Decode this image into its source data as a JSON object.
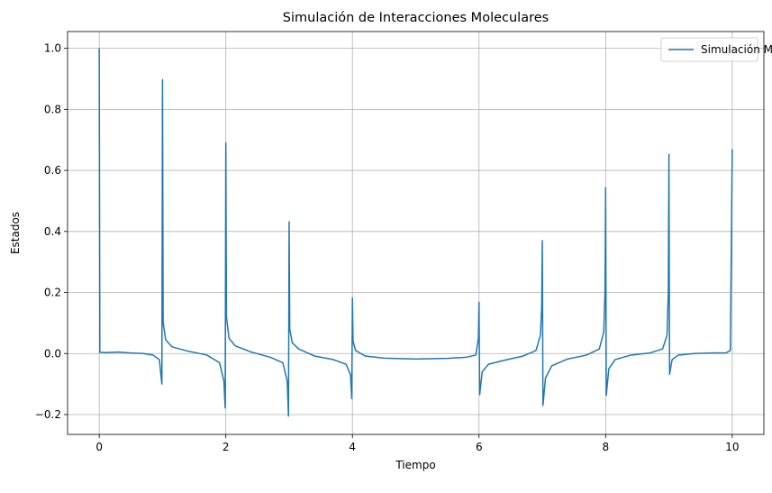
{
  "chart_data": {
    "type": "line",
    "title": "Simulación de Interacciones Moleculares",
    "xlabel": "Tiempo",
    "ylabel": "Estados",
    "xlim": [
      -0.5,
      10.5
    ],
    "ylim": [
      -0.265,
      1.055
    ],
    "xticks": [
      0,
      2,
      4,
      6,
      8,
      10
    ],
    "yticks": [
      -0.2,
      0.0,
      0.2,
      0.4,
      0.6,
      0.8,
      1.0
    ],
    "grid": true,
    "legend": {
      "placement": "top-right",
      "entries": [
        "Simulación Molecular"
      ]
    },
    "series": [
      {
        "name": "Simulación Molecular",
        "color": "#1f77b4",
        "points": [
          [
            0.0,
            1.0
          ],
          [
            0.01,
            0.004
          ],
          [
            0.1,
            0.003
          ],
          [
            0.3,
            0.005
          ],
          [
            0.5,
            0.002
          ],
          [
            0.7,
            0.0
          ],
          [
            0.85,
            -0.005
          ],
          [
            0.95,
            -0.02
          ],
          [
            0.99,
            -0.1
          ],
          [
            1.0,
            0.897
          ],
          [
            1.01,
            0.1
          ],
          [
            1.05,
            0.045
          ],
          [
            1.15,
            0.022
          ],
          [
            1.4,
            0.008
          ],
          [
            1.7,
            -0.005
          ],
          [
            1.9,
            -0.03
          ],
          [
            1.97,
            -0.09
          ],
          [
            1.99,
            -0.178
          ],
          [
            2.0,
            0.69
          ],
          [
            2.01,
            0.12
          ],
          [
            2.05,
            0.05
          ],
          [
            2.15,
            0.025
          ],
          [
            2.4,
            0.005
          ],
          [
            2.7,
            -0.012
          ],
          [
            2.9,
            -0.03
          ],
          [
            2.97,
            -0.09
          ],
          [
            2.99,
            -0.205
          ],
          [
            3.0,
            0.432
          ],
          [
            3.01,
            0.08
          ],
          [
            3.05,
            0.035
          ],
          [
            3.15,
            0.015
          ],
          [
            3.4,
            -0.008
          ],
          [
            3.7,
            -0.02
          ],
          [
            3.9,
            -0.035
          ],
          [
            3.97,
            -0.07
          ],
          [
            3.99,
            -0.148
          ],
          [
            4.0,
            0.182
          ],
          [
            4.01,
            0.04
          ],
          [
            4.05,
            0.01
          ],
          [
            4.2,
            -0.008
          ],
          [
            4.5,
            -0.015
          ],
          [
            5.0,
            -0.018
          ],
          [
            5.5,
            -0.016
          ],
          [
            5.8,
            -0.012
          ],
          [
            5.95,
            -0.005
          ],
          [
            5.99,
            0.05
          ],
          [
            6.0,
            0.168
          ],
          [
            6.01,
            -0.135
          ],
          [
            6.05,
            -0.06
          ],
          [
            6.15,
            -0.035
          ],
          [
            6.4,
            -0.022
          ],
          [
            6.7,
            -0.008
          ],
          [
            6.9,
            0.01
          ],
          [
            6.97,
            0.06
          ],
          [
            6.99,
            0.15
          ],
          [
            7.0,
            0.37
          ],
          [
            7.01,
            -0.17
          ],
          [
            7.05,
            -0.08
          ],
          [
            7.15,
            -0.04
          ],
          [
            7.4,
            -0.018
          ],
          [
            7.7,
            -0.005
          ],
          [
            7.9,
            0.015
          ],
          [
            7.97,
            0.07
          ],
          [
            7.99,
            0.2
          ],
          [
            8.0,
            0.543
          ],
          [
            8.01,
            -0.137
          ],
          [
            8.05,
            -0.05
          ],
          [
            8.15,
            -0.02
          ],
          [
            8.4,
            -0.005
          ],
          [
            8.7,
            0.002
          ],
          [
            8.9,
            0.015
          ],
          [
            8.97,
            0.06
          ],
          [
            8.99,
            0.2
          ],
          [
            9.0,
            0.653
          ],
          [
            9.01,
            -0.068
          ],
          [
            9.05,
            -0.02
          ],
          [
            9.15,
            -0.005
          ],
          [
            9.4,
            0.0
          ],
          [
            9.7,
            0.002
          ],
          [
            9.9,
            0.002
          ],
          [
            9.97,
            0.01
          ],
          [
            10.0,
            0.67
          ]
        ]
      }
    ]
  }
}
